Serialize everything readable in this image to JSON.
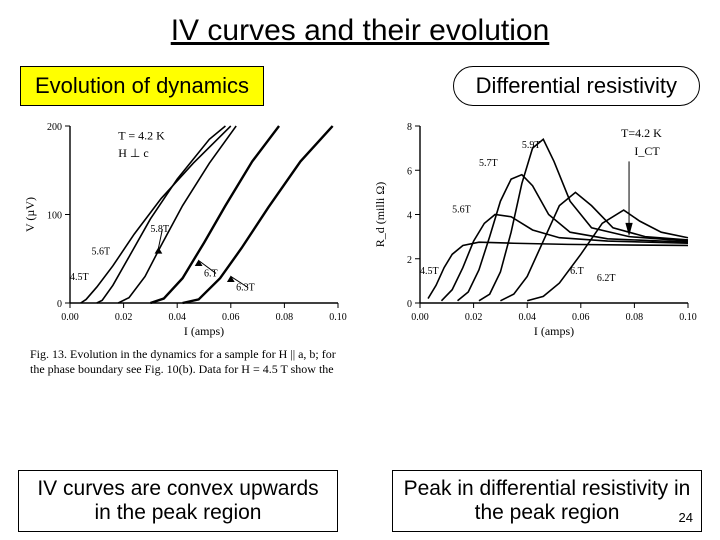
{
  "title": "IV curves and their evolution",
  "header_left": "Evolution of dynamics",
  "header_right": "Differential resistivity",
  "bottom_left": "IV curves are convex upwards in the peak region",
  "bottom_right": "Peak in differential resistivity in the peak region",
  "slide_number": "24",
  "caption_left": "Fig. 13. Evolution in the dynamics for a sample for H || a, b; for the phase boundary see Fig. 10(b). Data for H = 4.5 T show the",
  "colors": {
    "yellow": "#ffff00",
    "black": "#000000",
    "white": "#ffffff"
  },
  "left_chart": {
    "type": "line",
    "xlabel": "I (amps)",
    "ylabel": "V (µV)",
    "xlim": [
      0,
      0.1
    ],
    "ylim": [
      0,
      200
    ],
    "xticks": [
      0.0,
      0.02,
      0.04,
      0.06,
      0.08,
      0.1
    ],
    "yticks": [
      0,
      100,
      200
    ],
    "annotations": [
      "T = 4.2 K",
      "H ⊥ c"
    ],
    "curve_labels": [
      "4.5T",
      "5.6T",
      "5.8T",
      "6.T",
      "6.3T"
    ],
    "series": [
      {
        "label": "4.5T",
        "pts": [
          [
            0.004,
            0
          ],
          [
            0.006,
            4
          ],
          [
            0.01,
            18
          ],
          [
            0.016,
            42
          ],
          [
            0.024,
            78
          ],
          [
            0.034,
            118
          ],
          [
            0.046,
            158
          ],
          [
            0.06,
            200
          ]
        ]
      },
      {
        "label": "5.6T",
        "pts": [
          [
            0.01,
            0
          ],
          [
            0.012,
            3
          ],
          [
            0.016,
            20
          ],
          [
            0.022,
            52
          ],
          [
            0.03,
            95
          ],
          [
            0.04,
            140
          ],
          [
            0.052,
            185
          ],
          [
            0.058,
            200
          ]
        ]
      },
      {
        "label": "5.8T",
        "pts": [
          [
            0.018,
            0
          ],
          [
            0.022,
            6
          ],
          [
            0.028,
            30
          ],
          [
            0.034,
            65
          ],
          [
            0.042,
            110
          ],
          [
            0.052,
            158
          ],
          [
            0.062,
            200
          ]
        ]
      },
      {
        "label": "6.T",
        "pts": [
          [
            0.03,
            0
          ],
          [
            0.035,
            5
          ],
          [
            0.042,
            28
          ],
          [
            0.05,
            68
          ],
          [
            0.058,
            110
          ],
          [
            0.068,
            160
          ],
          [
            0.078,
            200
          ]
        ]
      },
      {
        "label": "6.3T",
        "pts": [
          [
            0.042,
            0
          ],
          [
            0.048,
            4
          ],
          [
            0.056,
            28
          ],
          [
            0.064,
            62
          ],
          [
            0.074,
            108
          ],
          [
            0.086,
            160
          ],
          [
            0.098,
            200
          ]
        ]
      }
    ]
  },
  "right_chart": {
    "type": "line",
    "xlabel": "I (amps)",
    "ylabel": "R_d (milli Ω)",
    "xlim": [
      0,
      0.1
    ],
    "ylim": [
      0,
      8
    ],
    "xticks": [
      0.0,
      0.02,
      0.04,
      0.06,
      0.08,
      0.1
    ],
    "yticks": [
      0,
      2,
      4,
      6,
      8
    ],
    "annotations": [
      "T=4.2 K",
      "I_CT"
    ],
    "curve_labels": [
      "4.5T",
      "5.6T",
      "5.7T",
      "5.9T",
      "6.T",
      "6.2T"
    ],
    "series": [
      {
        "label": "4.5T",
        "pts": [
          [
            0.003,
            0.2
          ],
          [
            0.006,
            0.8
          ],
          [
            0.009,
            1.6
          ],
          [
            0.012,
            2.2
          ],
          [
            0.016,
            2.6
          ],
          [
            0.022,
            2.75
          ],
          [
            0.035,
            2.7
          ],
          [
            0.055,
            2.65
          ],
          [
            0.08,
            2.62
          ],
          [
            0.1,
            2.6
          ]
        ]
      },
      {
        "label": "5.6T",
        "pts": [
          [
            0.008,
            0.1
          ],
          [
            0.012,
            0.6
          ],
          [
            0.016,
            1.6
          ],
          [
            0.02,
            2.8
          ],
          [
            0.024,
            3.6
          ],
          [
            0.028,
            4.0
          ],
          [
            0.034,
            3.9
          ],
          [
            0.042,
            3.3
          ],
          [
            0.052,
            2.95
          ],
          [
            0.07,
            2.8
          ],
          [
            0.1,
            2.7
          ]
        ]
      },
      {
        "label": "5.7T",
        "pts": [
          [
            0.014,
            0.1
          ],
          [
            0.018,
            0.5
          ],
          [
            0.022,
            1.5
          ],
          [
            0.026,
            3.0
          ],
          [
            0.03,
            4.6
          ],
          [
            0.034,
            5.6
          ],
          [
            0.038,
            5.8
          ],
          [
            0.042,
            5.3
          ],
          [
            0.048,
            4.0
          ],
          [
            0.056,
            3.2
          ],
          [
            0.07,
            2.9
          ],
          [
            0.1,
            2.75
          ]
        ]
      },
      {
        "label": "5.9T",
        "pts": [
          [
            0.022,
            0.1
          ],
          [
            0.026,
            0.4
          ],
          [
            0.03,
            1.4
          ],
          [
            0.034,
            3.2
          ],
          [
            0.038,
            5.4
          ],
          [
            0.042,
            7.0
          ],
          [
            0.046,
            7.4
          ],
          [
            0.05,
            6.4
          ],
          [
            0.056,
            4.6
          ],
          [
            0.064,
            3.4
          ],
          [
            0.078,
            3.0
          ],
          [
            0.1,
            2.8
          ]
        ]
      },
      {
        "label": "6.T",
        "pts": [
          [
            0.03,
            0.1
          ],
          [
            0.035,
            0.4
          ],
          [
            0.04,
            1.2
          ],
          [
            0.046,
            2.8
          ],
          [
            0.052,
            4.4
          ],
          [
            0.058,
            5.0
          ],
          [
            0.064,
            4.4
          ],
          [
            0.072,
            3.4
          ],
          [
            0.084,
            3.0
          ],
          [
            0.1,
            2.85
          ]
        ]
      },
      {
        "label": "6.2T",
        "pts": [
          [
            0.04,
            0.1
          ],
          [
            0.046,
            0.3
          ],
          [
            0.052,
            0.9
          ],
          [
            0.06,
            2.2
          ],
          [
            0.068,
            3.6
          ],
          [
            0.076,
            4.2
          ],
          [
            0.082,
            3.7
          ],
          [
            0.09,
            3.2
          ],
          [
            0.1,
            2.95
          ]
        ]
      }
    ]
  }
}
